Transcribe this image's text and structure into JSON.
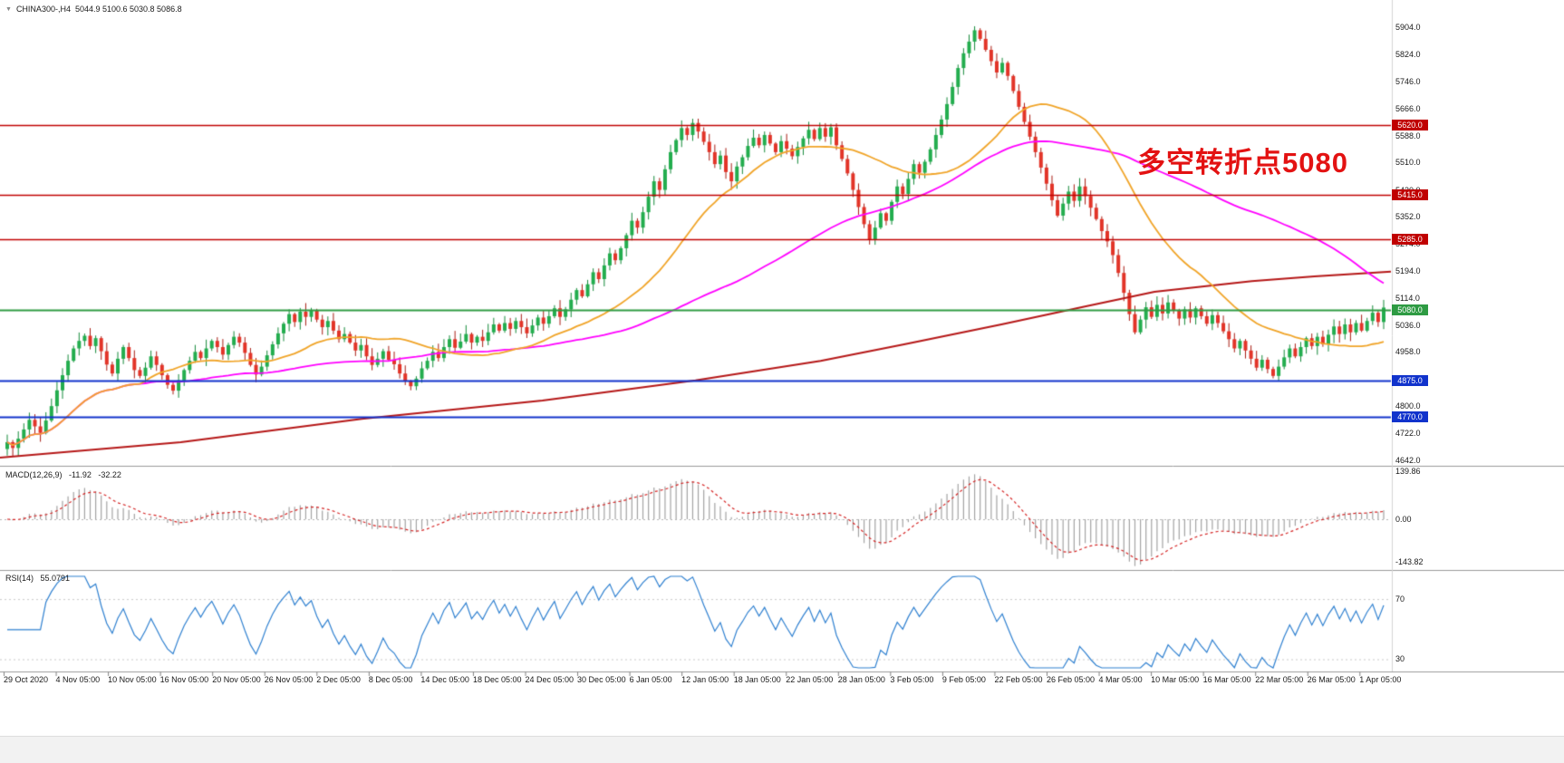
{
  "title": {
    "symbol_period": "CHINA300-,H4",
    "ohlc": "5044.9 5100.6 5030.8 5086.8"
  },
  "annotation": {
    "text": "多空转折点5080",
    "color": "#e31212"
  },
  "macd": {
    "label": "MACD(12,26,9)",
    "value_main": "-11.92",
    "value_signal": "-32.22",
    "axis_ticks": [
      "139.86",
      "0.00",
      "-143.82"
    ]
  },
  "rsi": {
    "label": "RSI(14)",
    "value": "55.0791",
    "axis_ticks": [
      "70",
      "30"
    ]
  },
  "chart_data": [
    {
      "type": "candlestick",
      "title": "CHINA300-,H4",
      "timeframe": "H4",
      "x_start": "29 Oct 2020",
      "x_end": "1 Apr 2021",
      "ohlc_current": {
        "open": 5044.9,
        "high": 5100.6,
        "low": 5030.8,
        "close": 5086.8
      },
      "y_axis": {
        "min": 4642.0,
        "max": 5904.0,
        "ticks": [
          5904.0,
          5824.0,
          5746.0,
          5666.0,
          5588.0,
          5510.0,
          5430.0,
          5352.0,
          5274.0,
          5194.0,
          5114.0,
          5036.0,
          4958.0,
          4880.0,
          4800.0,
          4722.0,
          4642.0
        ]
      },
      "x_ticks": [
        "29 Oct 2020",
        "4 Nov 05:00",
        "10 Nov 05:00",
        "16 Nov 05:00",
        "20 Nov 05:00",
        "26 Nov 05:00",
        "2 Dec 05:00",
        "8 Dec 05:00",
        "14 Dec 05:00",
        "18 Dec 05:00",
        "24 Dec 05:00",
        "30 Dec 05:00",
        "6 Jan 05:00",
        "12 Jan 05:00",
        "18 Jan 05:00",
        "22 Jan 05:00",
        "28 Jan 05:00",
        "3 Feb 05:00",
        "9 Feb 05:00",
        "22 Feb 05:00",
        "26 Feb 05:00",
        "4 Mar 05:00",
        "10 Mar 05:00",
        "16 Mar 05:00",
        "22 Mar 05:00",
        "26 Mar 05:00",
        "1 Apr 05:00"
      ],
      "closes": [
        4695,
        4678,
        4705,
        4732,
        4760,
        4741,
        4722,
        4758,
        4800,
        4846,
        4890,
        4932,
        4968,
        4990,
        5005,
        4975,
        4998,
        4960,
        4921,
        4895,
        4938,
        4972,
        4940,
        4905,
        4888,
        4912,
        4945,
        4920,
        4890,
        4862,
        4845,
        4875,
        4905,
        4932,
        4958,
        4940,
        4968,
        4990,
        4972,
        4950,
        4978,
        5002,
        4985,
        4955,
        4920,
        4892,
        4915,
        4948,
        4980,
        5012,
        5040,
        5068,
        5045,
        5075,
        5060,
        5078,
        5052,
        5030,
        5048,
        5020,
        4995,
        5010,
        4985,
        4962,
        4978,
        4945,
        4920,
        4938,
        4960,
        4935,
        4922,
        4895,
        4872,
        4858,
        4880,
        4910,
        4932,
        4958,
        4940,
        4972,
        4995,
        4970,
        4988,
        5010,
        4985,
        5002,
        4990,
        5015,
        5038,
        5020,
        5042,
        5025,
        5048,
        5030,
        5012,
        5035,
        5058,
        5040,
        5062,
        5085,
        5060,
        5082,
        5110,
        5138,
        5120,
        5155,
        5190,
        5170,
        5210,
        5245,
        5225,
        5260,
        5298,
        5340,
        5320,
        5365,
        5410,
        5455,
        5430,
        5490,
        5540,
        5575,
        5610,
        5590,
        5625,
        5600,
        5570,
        5540,
        5505,
        5530,
        5482,
        5455,
        5498,
        5525,
        5558,
        5582,
        5560,
        5590,
        5565,
        5540,
        5572,
        5550,
        5528,
        5555,
        5580,
        5605,
        5578,
        5610,
        5585,
        5612,
        5560,
        5520,
        5478,
        5430,
        5380,
        5330,
        5285,
        5320,
        5362,
        5340,
        5395,
        5440,
        5418,
        5462,
        5505,
        5480,
        5512,
        5548,
        5590,
        5635,
        5680,
        5730,
        5785,
        5828,
        5862,
        5895,
        5870,
        5838,
        5805,
        5772,
        5800,
        5762,
        5718,
        5672,
        5628,
        5585,
        5540,
        5495,
        5448,
        5400,
        5355,
        5390,
        5425,
        5398,
        5440,
        5412,
        5378,
        5345,
        5310,
        5280,
        5240,
        5188,
        5130,
        5068,
        5015,
        5052,
        5088,
        5060,
        5095,
        5070,
        5102,
        5078,
        5055,
        5082,
        5058,
        5085,
        5062,
        5040,
        5065,
        5042,
        5018,
        4995,
        4968,
        4990,
        4962,
        4938,
        4912,
        4935,
        4908,
        4888,
        4915,
        4942,
        4968,
        4945,
        4972,
        4998,
        4975,
        5002,
        4980,
        5008,
        5032,
        5010,
        5038,
        5015,
        5042,
        5020,
        5048,
        5072,
        5045,
        5087
      ],
      "horizontal_levels": [
        {
          "label": "5620.0",
          "price": 5620.0,
          "color": "#c00000",
          "width": 1.6
        },
        {
          "label": "5415.0",
          "price": 5415.0,
          "color": "#c00000",
          "width": 1.6
        },
        {
          "label": "5285.0",
          "price": 5285.0,
          "color": "#c00000",
          "width": 1.6
        },
        {
          "label": "5080.0",
          "price": 5080.0,
          "color": "#2e9b43",
          "width": 1.8
        },
        {
          "label": "4875.0",
          "price": 4875.0,
          "color": "#1133cc",
          "width": 2
        },
        {
          "label": "4770.0",
          "price": 4770.0,
          "color": "#1133cc",
          "width": 2
        }
      ],
      "ma_slow_path": [
        [
          0,
          4650
        ],
        [
          0.13,
          4695
        ],
        [
          0.26,
          4763
        ],
        [
          0.39,
          4816
        ],
        [
          0.5,
          4875
        ],
        [
          0.59,
          4932
        ],
        [
          0.65,
          4980
        ],
        [
          0.72,
          5038
        ],
        [
          0.78,
          5090
        ],
        [
          0.83,
          5133
        ],
        [
          0.9,
          5164
        ],
        [
          0.945,
          5178
        ],
        [
          1,
          5192
        ]
      ],
      "style": {
        "up": "#23ad4e",
        "up_wick": "#158a3a",
        "down": "#e23428",
        "down_wick": "#a81d14",
        "ma_fast": "#f0a428",
        "ma_mid": "#ff00ff",
        "ma_slow": "#b51717"
      }
    },
    {
      "type": "line",
      "name": "MACD(12,26,9)",
      "last_main": -11.92,
      "last_signal": -32.22,
      "y_ticks": [
        139.86,
        0.0,
        -143.82
      ],
      "style": {
        "histogram": "#a3a3a3",
        "signal": "#d42222"
      }
    },
    {
      "type": "line",
      "name": "RSI(14)",
      "last": 55.0791,
      "guides": [
        70,
        30
      ],
      "style": {
        "line": "#2f80d0"
      }
    }
  ]
}
